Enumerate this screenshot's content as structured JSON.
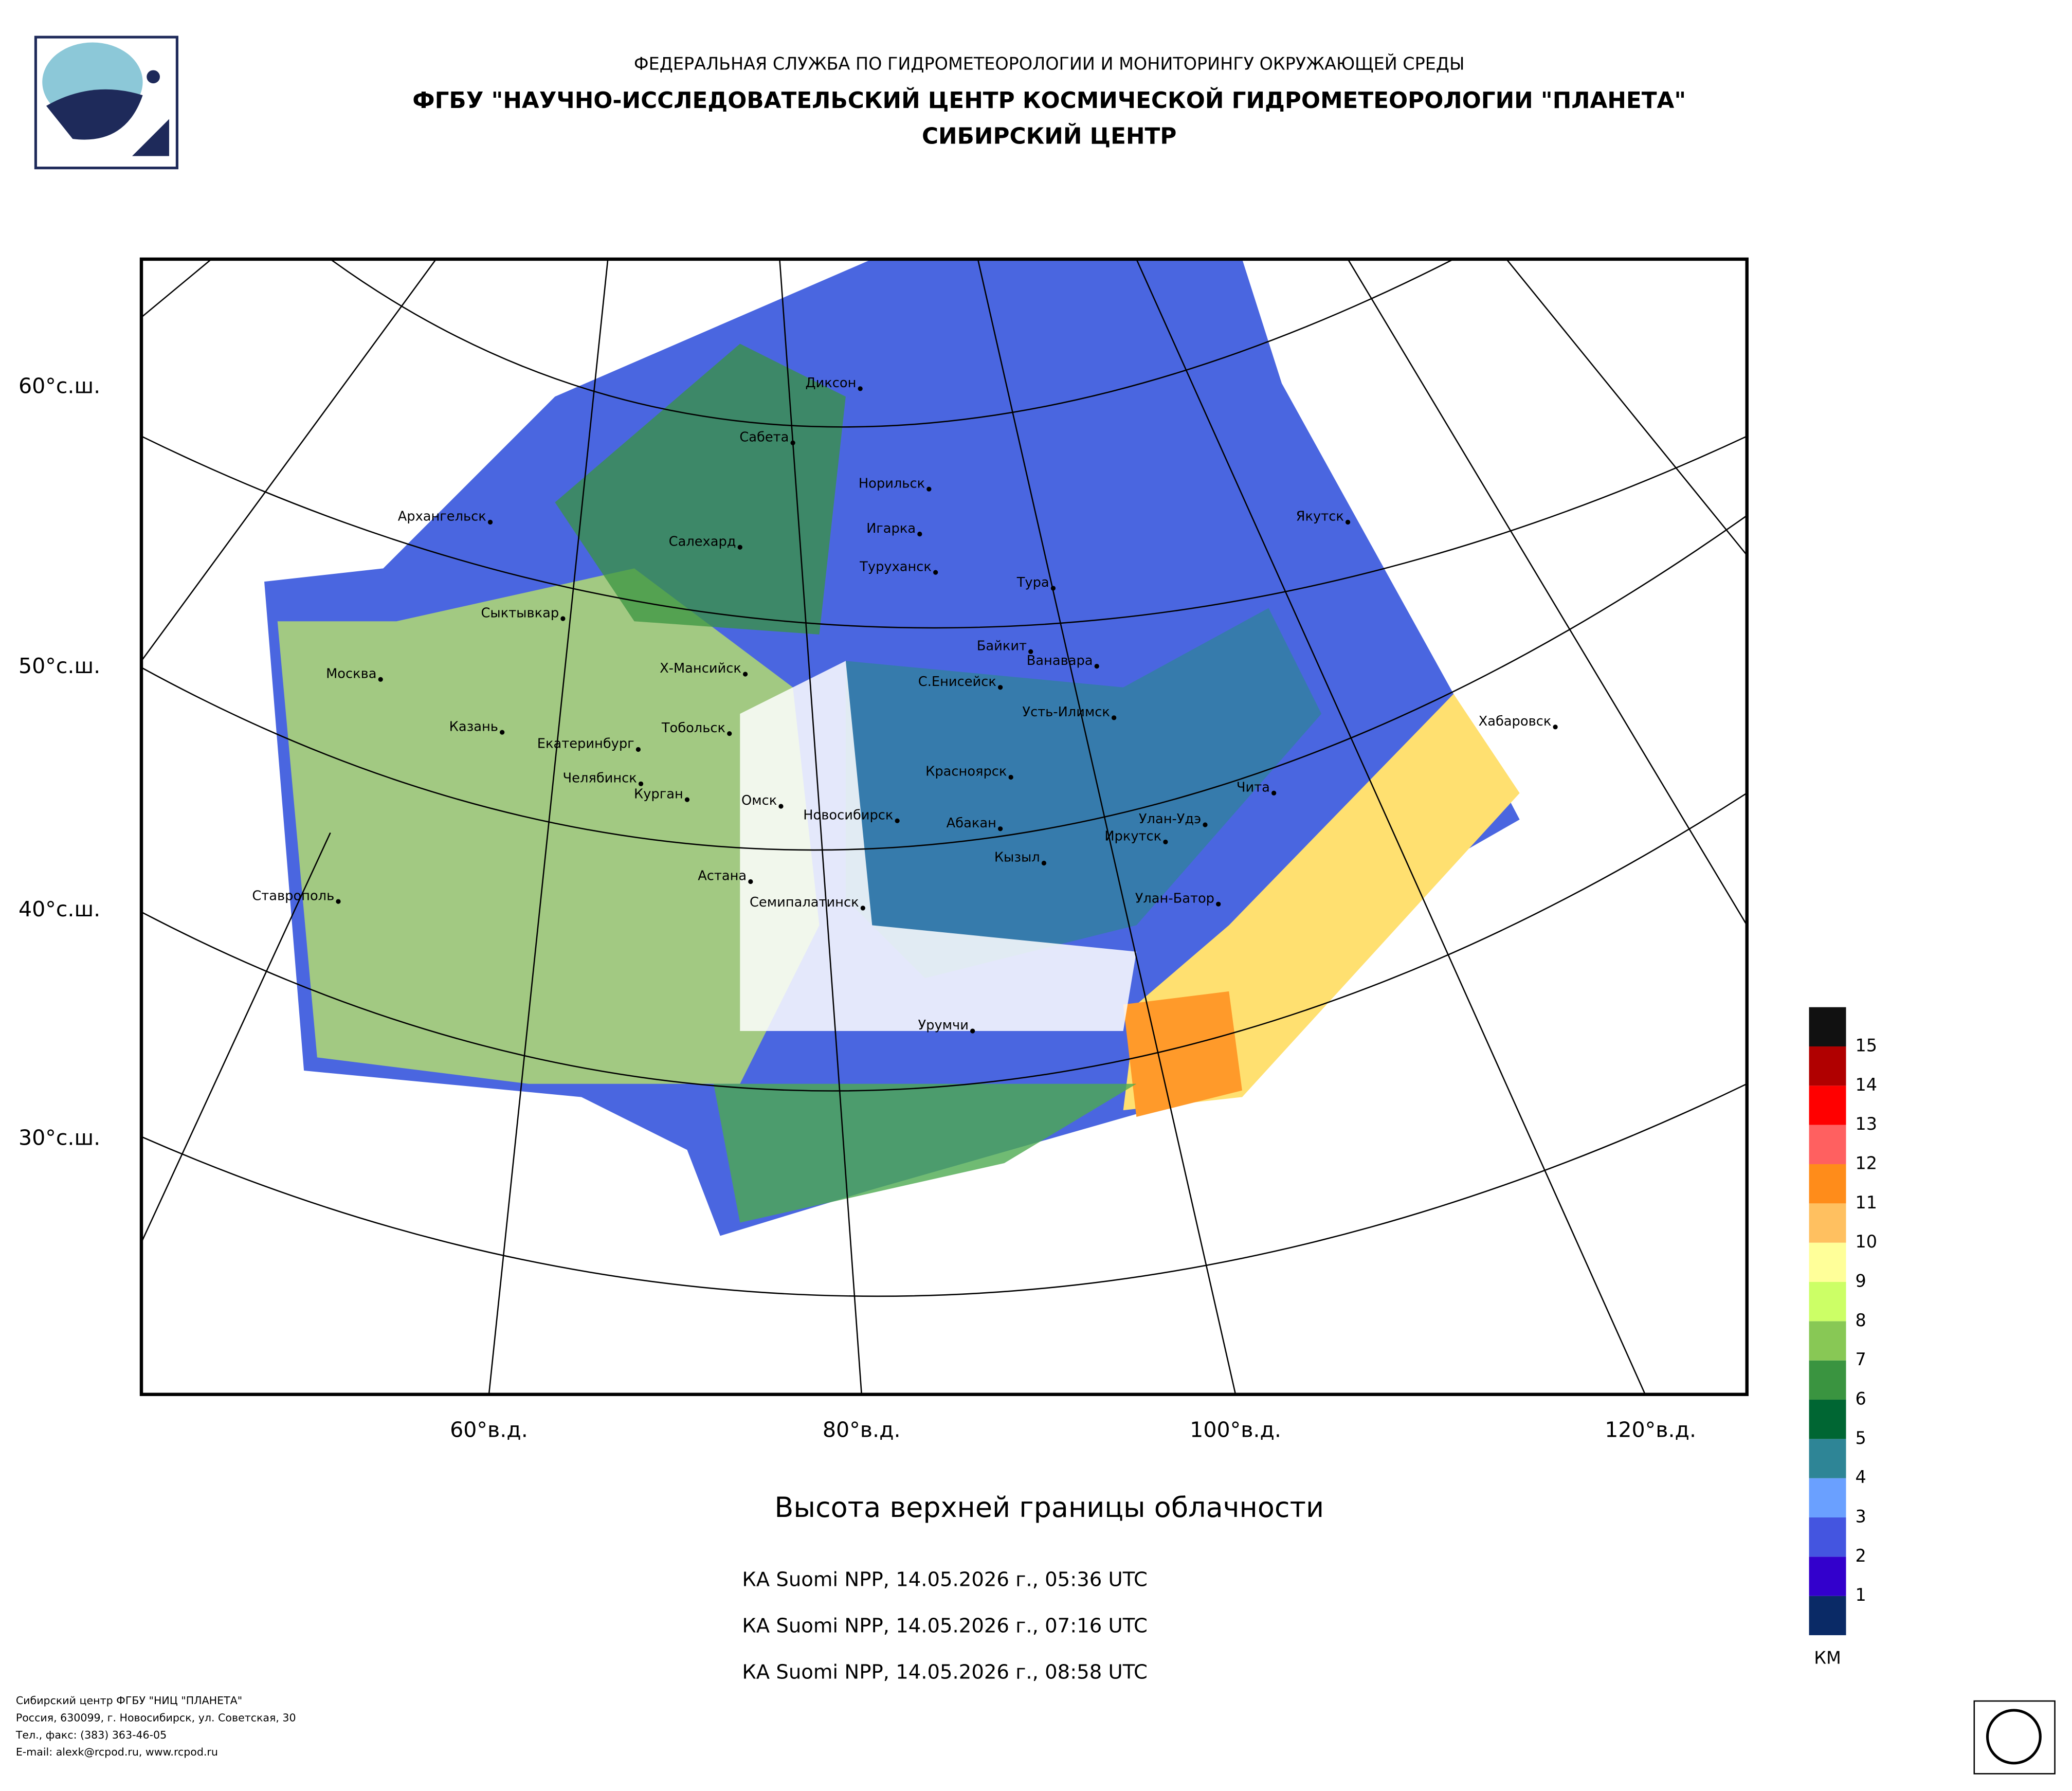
{
  "header": {
    "agency": "ФЕДЕРАЛЬНАЯ СЛУЖБА ПО ГИДРОМЕТЕОРОЛОГИИ И МОНИТОРИНГУ ОКРУЖАЮЩЕЙ СРЕДЫ",
    "institute": "ФГБУ \"НАУЧНО-ИССЛЕДОВАТЕЛЬСКИЙ ЦЕНТР КОСМИЧЕСКОЙ ГИДРОМЕТЕОРОЛОГИИ \"ПЛАНЕТА\"",
    "center": "СИБИРСКИЙ ЦЕНТР"
  },
  "map": {
    "lat_labels": [
      "60°с.ш.",
      "50°с.ш.",
      "40°с.ш.",
      "30°с.ш."
    ],
    "lon_labels": [
      "60°в.д.",
      "80°в.д.",
      "100°в.д.",
      "120°в.д."
    ],
    "cities": [
      "Диксон",
      "Сабета",
      "Норильск",
      "Игарка",
      "Салехард",
      "Туруханск",
      "Архангельск",
      "Якутск",
      "Тура",
      "Сыктывкар",
      "Байкит",
      "Ванавара",
      "Х-Мансийск",
      "С.Енисейск",
      "Москва",
      "Усть-Илимск",
      "Хабаровск",
      "Казань",
      "Тобольск",
      "Екатеринбург",
      "Красноярск",
      "Челябинск",
      "Чита",
      "Курган",
      "Омск",
      "Новосибирск",
      "Улан-Удэ",
      "Абакан",
      "Иркутск",
      "Кызыл",
      "Астана",
      "Ставрополь",
      "Улан-Батор",
      "Семипалатинск",
      "Урумчи"
    ]
  },
  "title": "Высота верхней границы облачности",
  "passes": [
    "КА Suomi NPP, 14.05.2026 г., 05:36 UTC",
    "КА Suomi NPP, 14.05.2026 г., 07:16 UTC",
    "КА Suomi NPP, 14.05.2026 г., 08:58 UTC"
  ],
  "legend": {
    "unit": "КМ",
    "levels": [
      1,
      2,
      3,
      4,
      5,
      6,
      7,
      8,
      9,
      10,
      11,
      12,
      13,
      14,
      15
    ],
    "colors": [
      "#0a2a66",
      "#3300cc",
      "#4455e0",
      "#6aa0ff",
      "#2e8596",
      "#006633",
      "#3a9440",
      "#88c855",
      "#ccff66",
      "#ffff99",
      "#ffc060",
      "#ff8c1a",
      "#ff6060",
      "#ff0000",
      "#b00000",
      "#111111"
    ]
  },
  "footer": [
    "Сибирский центр ФГБУ \"НИЦ \"ПЛАНЕТА\"",
    "Россия, 630099, г. Новосибирск, ул. Советская, 30",
    "Тел., факс: (383) 363-46-05",
    "E-mail: alexk@rcpod.ru, www.rcpod.ru"
  ]
}
